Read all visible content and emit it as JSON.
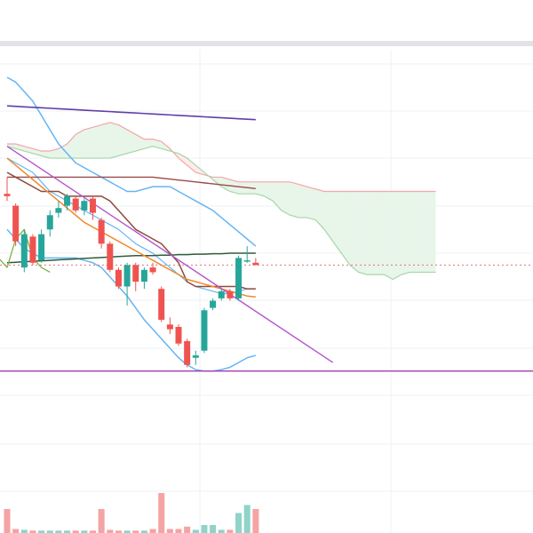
{
  "chart_data": {
    "type": "candlestick",
    "colors": {
      "up": "#26a69a",
      "down": "#ef5350",
      "grid": "#eef0f3",
      "cloud_bull": "#e8f5e9",
      "cloud_bull_line": "#a5d6a7",
      "cloud_bear": "#fdecea",
      "cloud_bear_line": "#f4a6a6",
      "bollinger": "#64b5f6",
      "ma_purple": "#5e3fa8",
      "ma_brown": "#8d4a3b",
      "ma_darkred": "#9c4a4a",
      "ma_darkgreen": "#2e5d3a",
      "ma_orange": "#f0892b",
      "chikou": "#7cb342",
      "trendline": "#b455c8",
      "support": "#a33db0",
      "last_price_line": "#e57373",
      "volume_up": "#8fd3ca",
      "volume_down": "#f5a3a3"
    },
    "candles": [
      {
        "o": 6.95,
        "h": 7.3,
        "l": 6.8,
        "c": 6.9
      },
      {
        "o": 6.7,
        "h": 6.75,
        "l": 5.85,
        "c": 5.95
      },
      {
        "o": 5.4,
        "h": 6.2,
        "l": 5.3,
        "c": 6.1
      },
      {
        "o": 6.05,
        "h": 6.1,
        "l": 5.45,
        "c": 5.5
      },
      {
        "o": 5.55,
        "h": 6.2,
        "l": 5.5,
        "c": 6.1
      },
      {
        "o": 6.2,
        "h": 6.6,
        "l": 6.05,
        "c": 6.5
      },
      {
        "o": 6.55,
        "h": 6.8,
        "l": 6.45,
        "c": 6.65
      },
      {
        "o": 6.7,
        "h": 6.95,
        "l": 6.6,
        "c": 6.9
      },
      {
        "o": 6.85,
        "h": 6.9,
        "l": 6.55,
        "c": 6.6
      },
      {
        "o": 6.6,
        "h": 6.85,
        "l": 6.5,
        "c": 6.8
      },
      {
        "o": 6.85,
        "h": 6.9,
        "l": 6.4,
        "c": 6.55
      },
      {
        "o": 6.4,
        "h": 6.45,
        "l": 5.8,
        "c": 5.9
      },
      {
        "o": 5.9,
        "h": 5.95,
        "l": 5.3,
        "c": 5.35
      },
      {
        "o": 5.35,
        "h": 5.4,
        "l": 4.95,
        "c": 5.0
      },
      {
        "o": 5.0,
        "h": 5.5,
        "l": 4.6,
        "c": 5.45
      },
      {
        "o": 5.45,
        "h": 5.5,
        "l": 4.9,
        "c": 5.1
      },
      {
        "o": 5.1,
        "h": 5.4,
        "l": 4.95,
        "c": 5.35
      },
      {
        "o": 5.4,
        "h": 5.5,
        "l": 5.25,
        "c": 5.3
      },
      {
        "o": 4.95,
        "h": 5.0,
        "l": 4.25,
        "c": 4.3
      },
      {
        "o": 4.2,
        "h": 4.35,
        "l": 4.0,
        "c": 4.1
      },
      {
        "o": 4.15,
        "h": 4.2,
        "l": 3.75,
        "c": 3.8
      },
      {
        "o": 3.85,
        "h": 3.9,
        "l": 3.3,
        "c": 3.35
      },
      {
        "o": 3.5,
        "h": 3.65,
        "l": 3.35,
        "c": 3.55
      },
      {
        "o": 3.65,
        "h": 4.55,
        "l": 3.6,
        "c": 4.5
      },
      {
        "o": 4.55,
        "h": 4.75,
        "l": 4.5,
        "c": 4.7
      },
      {
        "o": 4.75,
        "h": 4.95,
        "l": 4.7,
        "c": 4.9
      },
      {
        "o": 4.9,
        "h": 4.95,
        "l": 4.7,
        "c": 4.75
      },
      {
        "o": 4.75,
        "h": 5.65,
        "l": 4.7,
        "c": 5.6
      },
      {
        "o": 5.55,
        "h": 5.85,
        "l": 5.5,
        "c": 5.55
      },
      {
        "o": 5.5,
        "h": 5.6,
        "l": 5.45,
        "c": 5.45
      }
    ],
    "volumes": [
      3,
      0.5,
      0.4,
      0.3,
      0.3,
      0.3,
      0.3,
      0.3,
      0.3,
      0.3,
      0.3,
      3,
      0.4,
      0.3,
      0.3,
      0.3,
      0.3,
      0.5,
      5,
      0.5,
      0.5,
      0.8,
      0.4,
      1.0,
      1.0,
      0.4,
      0.4,
      2.5,
      3.5,
      3.0
    ],
    "bollinger": {
      "upper": [
        9.4,
        9.3,
        9.1,
        8.9,
        8.6,
        8.3,
        8.0,
        7.8,
        7.6,
        7.5,
        7.4,
        7.3,
        7.2,
        7.1,
        7.0,
        7.0,
        7.05,
        7.1,
        7.1,
        7.1,
        7.0,
        6.9,
        6.8,
        6.7,
        6.6,
        6.45,
        6.3,
        6.15,
        6.0,
        5.85
      ],
      "middle": [
        7.7,
        7.6,
        7.5,
        7.4,
        7.2,
        7.0,
        6.9,
        6.8,
        6.7,
        6.6,
        6.5,
        6.4,
        6.3,
        6.2,
        6.05,
        5.9,
        5.8,
        5.7,
        5.55,
        5.4,
        5.25,
        5.1,
        5.0,
        4.95,
        4.9,
        4.85,
        4.85,
        4.9,
        4.95,
        4.95
      ],
      "lower": [
        6.2,
        6.0,
        5.8,
        5.7,
        5.6,
        5.6,
        5.6,
        5.6,
        5.6,
        5.55,
        5.5,
        5.4,
        5.2,
        5.0,
        4.8,
        4.55,
        4.3,
        4.1,
        3.9,
        3.7,
        3.5,
        3.35,
        3.25,
        3.22,
        3.22,
        3.25,
        3.3,
        3.4,
        3.5,
        3.55
      ]
    },
    "ma_purple": [
      8.8,
      8.79,
      8.78,
      8.77,
      8.76,
      8.75,
      8.74,
      8.73,
      8.72,
      8.71,
      8.7,
      8.69,
      8.68,
      8.67,
      8.66,
      8.65,
      8.64,
      8.63,
      8.62,
      8.61,
      8.6,
      8.59,
      8.58,
      8.57,
      8.56,
      8.55,
      8.54,
      8.53,
      8.52,
      8.51
    ],
    "ma_brown": [
      7.4,
      7.3,
      7.2,
      7.1,
      7.0,
      7.0,
      7.0,
      6.9,
      6.9,
      6.9,
      6.9,
      6.9,
      6.8,
      6.6,
      6.4,
      6.2,
      6.1,
      6.0,
      5.9,
      5.7,
      5.5,
      5.1,
      5.0,
      5.0,
      5.0,
      5.0,
      5.0,
      5.0,
      4.95,
      4.95
    ],
    "ma_darkred": [
      7.3,
      7.3,
      7.3,
      7.3,
      7.3,
      7.3,
      7.3,
      7.3,
      7.3,
      7.3,
      7.3,
      7.3,
      7.3,
      7.3,
      7.3,
      7.3,
      7.3,
      7.3,
      7.28,
      7.26,
      7.24,
      7.22,
      7.2,
      7.18,
      7.16,
      7.14,
      7.12,
      7.1,
      7.08,
      7.06
    ],
    "ma_darkgreen": [
      5.5,
      5.51,
      5.52,
      5.53,
      5.54,
      5.55,
      5.56,
      5.57,
      5.58,
      5.59,
      5.6,
      5.61,
      5.62,
      5.63,
      5.64,
      5.65,
      5.65,
      5.65,
      5.66,
      5.66,
      5.67,
      5.67,
      5.68,
      5.68,
      5.69,
      5.69,
      5.7,
      5.7,
      5.7,
      5.7
    ],
    "ma_orange": [
      7.7,
      7.55,
      7.4,
      7.25,
      7.1,
      6.95,
      6.8,
      6.65,
      6.5,
      6.35,
      6.25,
      6.15,
      6.05,
      5.95,
      5.85,
      5.75,
      5.65,
      5.55,
      5.45,
      5.35,
      5.25,
      5.15,
      5.1,
      5.05,
      5.0,
      4.95,
      4.9,
      4.85,
      4.8,
      4.78
    ],
    "ichimoku_span_a": [
      8.0,
      8.0,
      7.95,
      7.9,
      7.85,
      7.85,
      7.9,
      8.0,
      8.2,
      8.3,
      8.35,
      8.4,
      8.45,
      8.4,
      8.3,
      8.2,
      8.1,
      8.1,
      8.05,
      7.9,
      7.7,
      7.55,
      7.4,
      7.35,
      7.3,
      7.3,
      7.25,
      7.2,
      7.2,
      7.2,
      7.2,
      7.2,
      7.2,
      7.2,
      7.15,
      7.1,
      7.05,
      7.0,
      7.0,
      7.0,
      7.0,
      7.0,
      7.0,
      7.0,
      7.0,
      7.0,
      7.0,
      7.0,
      7.0,
      7.0,
      7.0
    ],
    "ichimoku_span_b": [
      7.95,
      7.9,
      7.85,
      7.8,
      7.75,
      7.7,
      7.7,
      7.7,
      7.7,
      7.7,
      7.7,
      7.7,
      7.7,
      7.75,
      7.8,
      7.85,
      7.9,
      7.95,
      7.9,
      7.85,
      7.8,
      7.7,
      7.55,
      7.4,
      7.25,
      7.1,
      7.0,
      6.95,
      6.95,
      6.95,
      6.9,
      6.8,
      6.6,
      6.5,
      6.45,
      6.45,
      6.4,
      6.2,
      5.95,
      5.7,
      5.45,
      5.3,
      5.25,
      5.25,
      5.25,
      5.15,
      5.25,
      5.3,
      5.3,
      5.3,
      5.3
    ],
    "chikou": [
      5.2,
      5.6,
      5.4,
      6.0,
      6.2,
      5.6,
      5.4,
      5.3
    ],
    "trendline": {
      "from": [
        0,
        7.95
      ],
      "to": [
        38,
        3.4
      ]
    },
    "support_level": 3.22,
    "last_price": 5.45,
    "y_range": [
      0,
      10.0
    ],
    "grid": true
  }
}
